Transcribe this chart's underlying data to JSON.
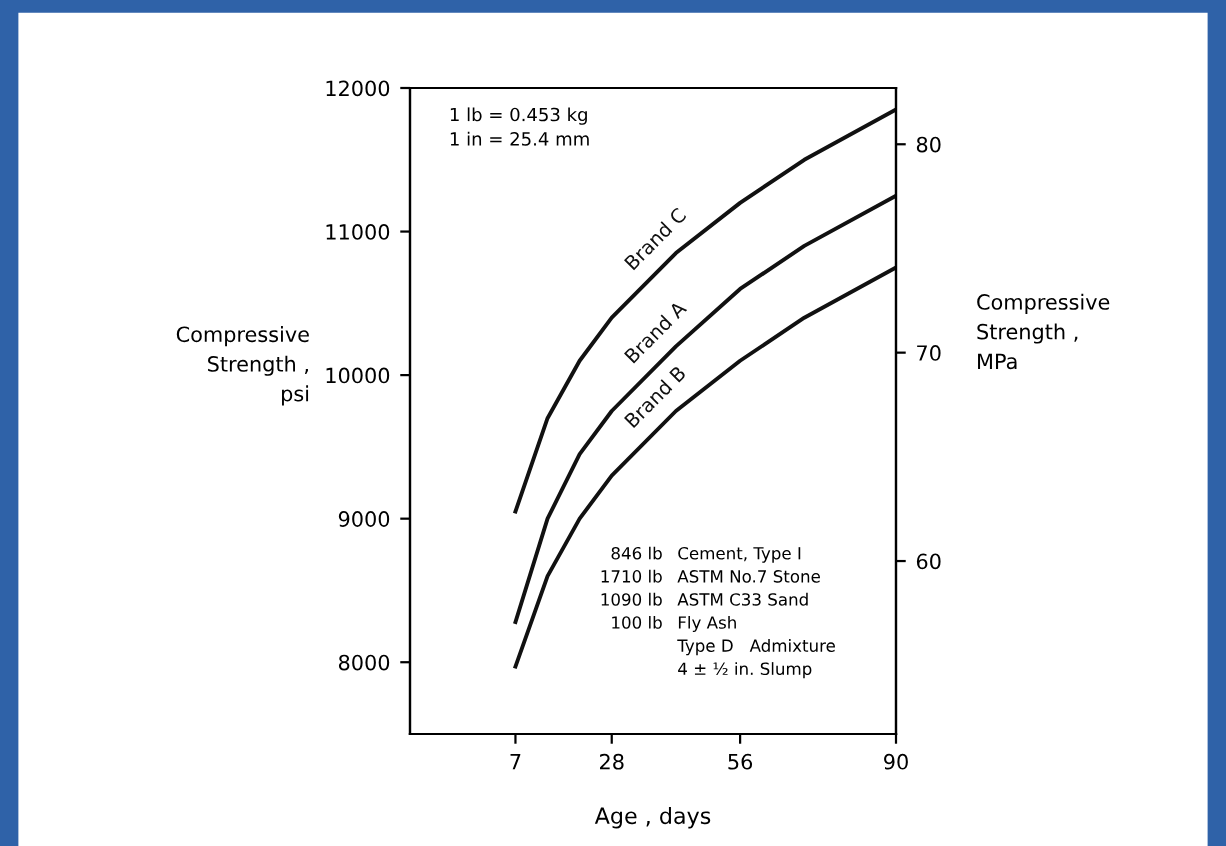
{
  "chart_data": {
    "type": "line",
    "x": [
      7,
      14,
      21,
      28,
      42,
      56,
      70,
      90
    ],
    "series": [
      {
        "name": "Brand C",
        "color": "#111111",
        "values": [
          9050,
          9700,
          10100,
          10400,
          10850,
          11200,
          11500,
          11850
        ]
      },
      {
        "name": "Brand A",
        "color": "#111111",
        "values": [
          8280,
          9000,
          9450,
          9750,
          10200,
          10600,
          10900,
          11250
        ]
      },
      {
        "name": "Brand B",
        "color": "#111111",
        "values": [
          7970,
          8600,
          9000,
          9300,
          9750,
          10100,
          10400,
          10750
        ]
      }
    ],
    "xlabel": "Age , days",
    "ylabel": "Compressive\nStrength ,\npsi",
    "y2label": "Compressive\nStrength ,\nMPa",
    "xlim": [
      -16,
      90
    ],
    "xticks": [
      7,
      28,
      56,
      90
    ],
    "ylim": [
      7500,
      12000
    ],
    "yticks": [
      8000,
      9000,
      10000,
      11000,
      12000
    ],
    "y2lim": [
      51.7,
      82.7
    ],
    "y2ticks": [
      60,
      70,
      80
    ],
    "annotations": [
      "1 lb = 0.453 kg\n1 in = 25.4 mm",
      "846 lb\n1710 lb\n1090 lb\n100 lb",
      "Cement, Type I\nASTM No.7 Stone\nASTM C33 Sand\nFly Ash\nType D   Admixture\n4 ± ½ in. Slump"
    ],
    "grid": false,
    "legend": false,
    "marker": "none",
    "line_style": "solid"
  }
}
